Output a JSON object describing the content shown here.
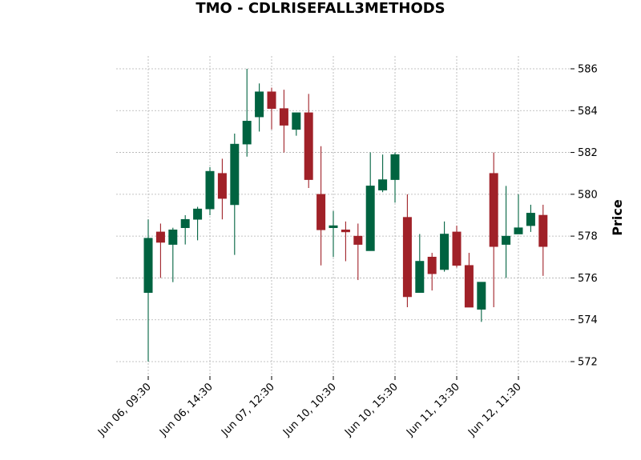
{
  "chart_data": {
    "type": "candlestick",
    "title": "TMO - CDLRISEFALL3METHODS",
    "ylabel": "Price",
    "xlabel": "",
    "ylim": [
      571.3,
      586.6
    ],
    "yticks": [
      572,
      574,
      576,
      578,
      580,
      582,
      584,
      586
    ],
    "x_tick_labels": [
      {
        "index": 0,
        "label": "Jun 06, 09:30"
      },
      {
        "index": 5,
        "label": "Jun 06, 14:30"
      },
      {
        "index": 10,
        "label": "Jun 07, 12:30"
      },
      {
        "index": 15,
        "label": "Jun 10, 10:30"
      },
      {
        "index": 20,
        "label": "Jun 10, 15:30"
      },
      {
        "index": 25,
        "label": "Jun 11, 13:30"
      },
      {
        "index": 30,
        "label": "Jun 12, 11:30"
      }
    ],
    "grid": true,
    "colors": {
      "up": "#006340",
      "down": "#a02128",
      "grid": "#b0b0b0"
    },
    "candles": [
      {
        "open": 575.3,
        "high": 578.8,
        "low": 572.0,
        "close": 577.9
      },
      {
        "open": 578.2,
        "high": 578.6,
        "low": 576.0,
        "close": 577.7
      },
      {
        "open": 577.6,
        "high": 578.4,
        "low": 575.8,
        "close": 578.3
      },
      {
        "open": 578.4,
        "high": 579.0,
        "low": 577.6,
        "close": 578.8
      },
      {
        "open": 578.8,
        "high": 579.4,
        "low": 577.8,
        "close": 579.3
      },
      {
        "open": 579.3,
        "high": 581.3,
        "low": 579.0,
        "close": 581.1
      },
      {
        "open": 581.0,
        "high": 581.7,
        "low": 578.8,
        "close": 579.8
      },
      {
        "open": 579.5,
        "high": 582.9,
        "low": 577.1,
        "close": 582.4
      },
      {
        "open": 582.4,
        "high": 586.0,
        "low": 581.8,
        "close": 583.5
      },
      {
        "open": 583.7,
        "high": 585.3,
        "low": 583.0,
        "close": 584.9
      },
      {
        "open": 584.9,
        "high": 585.1,
        "low": 583.1,
        "close": 584.1
      },
      {
        "open": 584.1,
        "high": 585.0,
        "low": 582.0,
        "close": 583.3
      },
      {
        "open": 583.1,
        "high": 583.9,
        "low": 582.8,
        "close": 583.9
      },
      {
        "open": 583.9,
        "high": 584.8,
        "low": 580.3,
        "close": 580.7
      },
      {
        "open": 580.0,
        "high": 582.3,
        "low": 576.6,
        "close": 578.3
      },
      {
        "open": 578.4,
        "high": 579.2,
        "low": 577.0,
        "close": 578.5
      },
      {
        "open": 578.3,
        "high": 578.7,
        "low": 576.8,
        "close": 578.2
      },
      {
        "open": 578.0,
        "high": 578.6,
        "low": 575.9,
        "close": 577.6
      },
      {
        "open": 577.3,
        "high": 582.0,
        "low": 577.3,
        "close": 580.4
      },
      {
        "open": 580.2,
        "high": 581.9,
        "low": 580.1,
        "close": 580.7
      },
      {
        "open": 580.7,
        "high": 582.0,
        "low": 579.6,
        "close": 581.9
      },
      {
        "open": 578.9,
        "high": 580.0,
        "low": 574.6,
        "close": 575.1
      },
      {
        "open": 575.3,
        "high": 578.1,
        "low": 575.3,
        "close": 576.8
      },
      {
        "open": 577.0,
        "high": 577.2,
        "low": 575.4,
        "close": 576.2
      },
      {
        "open": 576.4,
        "high": 578.7,
        "low": 576.3,
        "close": 578.1
      },
      {
        "open": 578.2,
        "high": 578.5,
        "low": 576.5,
        "close": 576.6
      },
      {
        "open": 576.6,
        "high": 577.2,
        "low": 574.6,
        "close": 574.6
      },
      {
        "open": 574.5,
        "high": 575.8,
        "low": 573.9,
        "close": 575.8
      },
      {
        "open": 581.0,
        "high": 582.0,
        "low": 574.6,
        "close": 577.5
      },
      {
        "open": 577.6,
        "high": 580.4,
        "low": 576.0,
        "close": 578.0
      },
      {
        "open": 578.1,
        "high": 580.0,
        "low": 578.1,
        "close": 578.4
      },
      {
        "open": 578.5,
        "high": 579.5,
        "low": 578.2,
        "close": 579.1
      },
      {
        "open": 579.0,
        "high": 579.5,
        "low": 576.1,
        "close": 577.5
      }
    ]
  }
}
